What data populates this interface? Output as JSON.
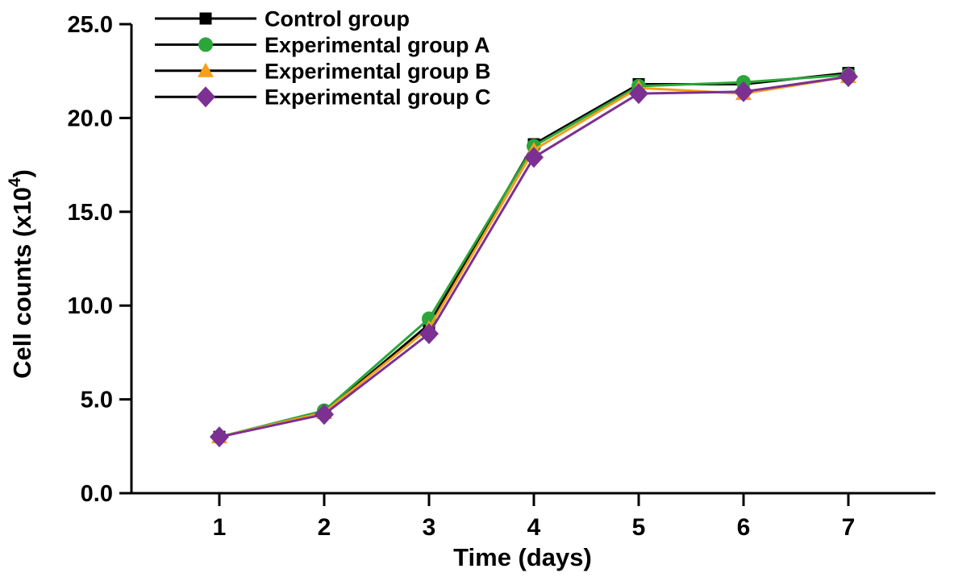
{
  "figure": {
    "background": "#ffffff"
  },
  "chart_data": {
    "type": "line",
    "title": "",
    "xlabel": "Time (days)",
    "ylabel": "Cell counts (x10⁴)",
    "ylabel_parts": {
      "main": "Cell counts (x10",
      "superscript": "4",
      "close": ")"
    },
    "x": [
      1,
      2,
      3,
      4,
      5,
      6,
      7
    ],
    "x_tick_labels": [
      "1",
      "2",
      "3",
      "4",
      "5",
      "6",
      "7"
    ],
    "y_tick_values": [
      0,
      5,
      10,
      15,
      20,
      25
    ],
    "y_tick_labels": [
      "0.0",
      "5.0",
      "10.0",
      "15.0",
      "20.0",
      "25.0"
    ],
    "xlim": [
      0.2,
      7.8
    ],
    "ylim": [
      0,
      25
    ],
    "grid": false,
    "legend_position": "top-left-inside",
    "legend_line_color": "#000000",
    "axis_color": "#000000",
    "series": [
      {
        "name": "Control group",
        "marker": "square",
        "color": "#000000",
        "values": [
          3.0,
          4.3,
          9.0,
          18.6,
          21.8,
          21.8,
          22.4
        ]
      },
      {
        "name": "Experimental group A",
        "marker": "circle",
        "color": "#2aa63a",
        "values": [
          3.0,
          4.4,
          9.3,
          18.5,
          21.7,
          21.9,
          22.3
        ]
      },
      {
        "name": "Experimental group B",
        "marker": "triangle",
        "color": "#f49f1e",
        "values": [
          3.0,
          4.3,
          8.8,
          18.3,
          21.6,
          21.3,
          22.2
        ]
      },
      {
        "name": "Experimental group C",
        "marker": "diamond",
        "color": "#7b3092",
        "values": [
          3.0,
          4.2,
          8.5,
          17.9,
          21.3,
          21.4,
          22.2
        ]
      }
    ]
  }
}
